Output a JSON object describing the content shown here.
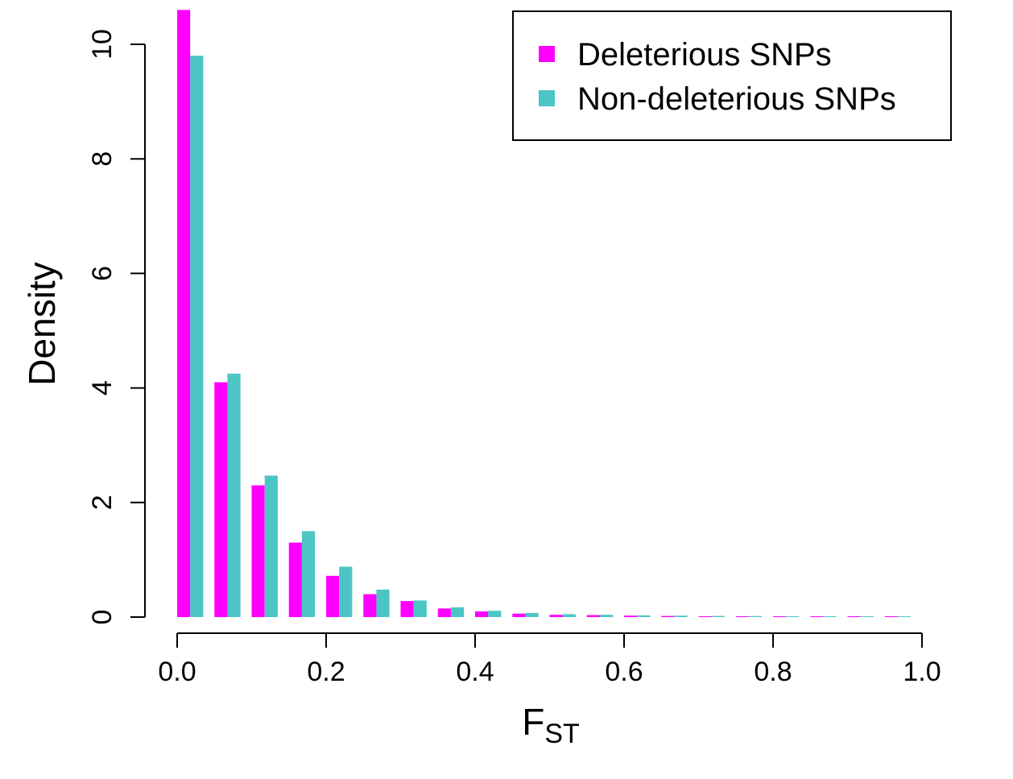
{
  "chart_data": {
    "type": "bar",
    "xlabel": {
      "main": "F",
      "sub": "ST"
    },
    "ylabel": "Density",
    "xlim": [
      0,
      1
    ],
    "ylim": [
      0,
      10.6
    ],
    "bin_width": 0.05,
    "x_ticks": [
      "0.0",
      "0.2",
      "0.4",
      "0.6",
      "0.8",
      "1.0"
    ],
    "y_ticks": [
      "0",
      "2",
      "4",
      "6",
      "8",
      "10"
    ],
    "grid": false,
    "legend_position": "top-right",
    "series": [
      {
        "name": "Deleterious SNPs",
        "color": "#FF00FF",
        "values": [
          10.6,
          4.1,
          2.3,
          1.3,
          0.72,
          0.4,
          0.28,
          0.15,
          0.1,
          0.06,
          0.04,
          0.035,
          0.025,
          0.02,
          0.015,
          0.012,
          0.01,
          0.01,
          0.01,
          0.01
        ]
      },
      {
        "name": "Non-deleterious SNPs",
        "color": "#4CC5C5",
        "values": [
          9.8,
          4.25,
          2.47,
          1.5,
          0.88,
          0.48,
          0.29,
          0.17,
          0.11,
          0.07,
          0.05,
          0.04,
          0.03,
          0.025,
          0.02,
          0.018,
          0.015,
          0.012,
          0.01,
          0.01
        ]
      }
    ]
  }
}
